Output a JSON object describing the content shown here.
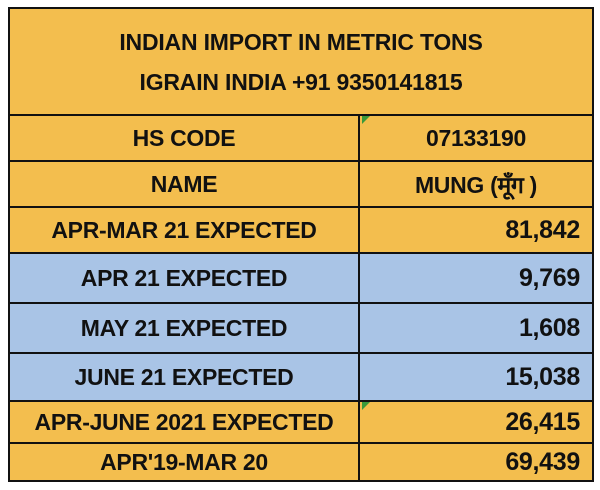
{
  "title": {
    "line1": "INDIAN IMPORT IN METRIC TONS",
    "line2": "IGRAIN INDIA +91 9350141815"
  },
  "rows": [
    {
      "label": "HS CODE",
      "value": "07133190"
    },
    {
      "label": "NAME",
      "value": "MUNG (मूँग )"
    },
    {
      "label": "APR-MAR 21 EXPECTED",
      "value": "81,842"
    },
    {
      "label": "APR 21 EXPECTED",
      "value": "9,769"
    },
    {
      "label": "MAY 21 EXPECTED",
      "value": "1,608"
    },
    {
      "label": "JUNE 21 EXPECTED",
      "value": "15,038"
    },
    {
      "label": "APR-JUNE 2021 EXPECTED",
      "value": "26,415"
    },
    {
      "label": "APR'19-MAR 20",
      "value": "69,439"
    }
  ],
  "colors": {
    "gold": "#f3be4e",
    "blue": "#a9c4e6",
    "border": "#111111",
    "comment_marker": "#3a9a3a"
  }
}
